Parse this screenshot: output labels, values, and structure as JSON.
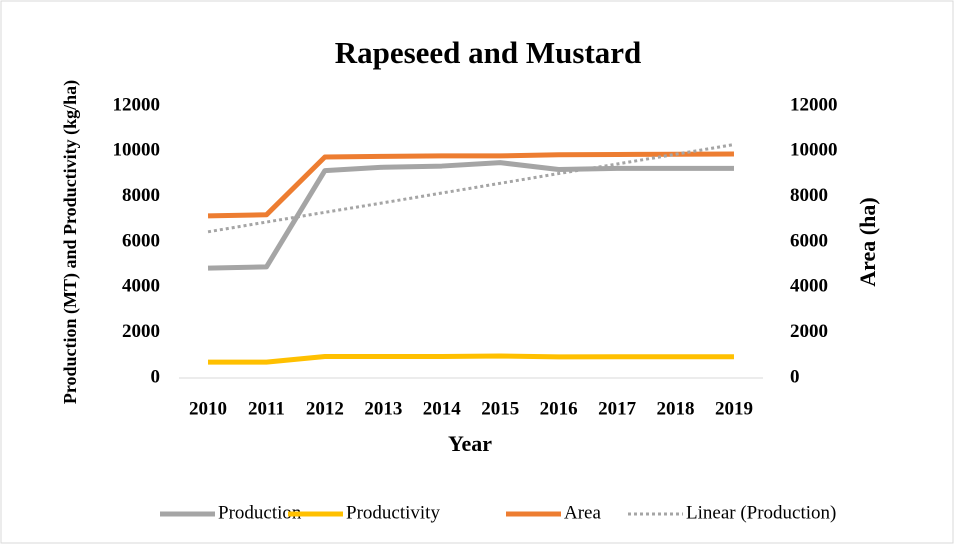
{
  "chart_data": {
    "type": "line",
    "title": "Rapeseed and Mustard",
    "x_label": "Year",
    "y_label": "Production (MT) and Productivity (kg/ha)",
    "y2_label": "Area (ha)",
    "categories": [
      "2010",
      "2011",
      "2012",
      "2013",
      "2014",
      "2015",
      "2016",
      "2017",
      "2018",
      "2019"
    ],
    "series": [
      {
        "name": "Production",
        "color": "#a5a5a5",
        "values": [
          4850,
          4900,
          9150,
          9300,
          9350,
          9500,
          9200,
          9250,
          9250,
          9250
        ]
      },
      {
        "name": "Productivity",
        "color": "#ffc000",
        "values": [
          700,
          700,
          950,
          950,
          950,
          970,
          930,
          940,
          940,
          940
        ]
      },
      {
        "name": "Area",
        "color": "#ed7d31",
        "axis": "y2",
        "values": [
          7150,
          7200,
          9750,
          9780,
          9800,
          9800,
          9850,
          9860,
          9870,
          9880
        ]
      },
      {
        "name": "Linear (Production)",
        "color": "#a5a5a5",
        "style": "dotted",
        "values": [
          6450,
          6880,
          7310,
          7730,
          8160,
          8590,
          9020,
          9440,
          9870,
          10300
        ]
      }
    ],
    "ylim": [
      0,
      12000
    ],
    "yticks": [
      0,
      2000,
      4000,
      6000,
      8000,
      10000,
      12000
    ],
    "y2lim": [
      0,
      12000
    ],
    "y2ticks": [
      0,
      2000,
      4000,
      6000,
      8000,
      10000,
      12000
    ],
    "grid": false,
    "legend": "bottom"
  }
}
